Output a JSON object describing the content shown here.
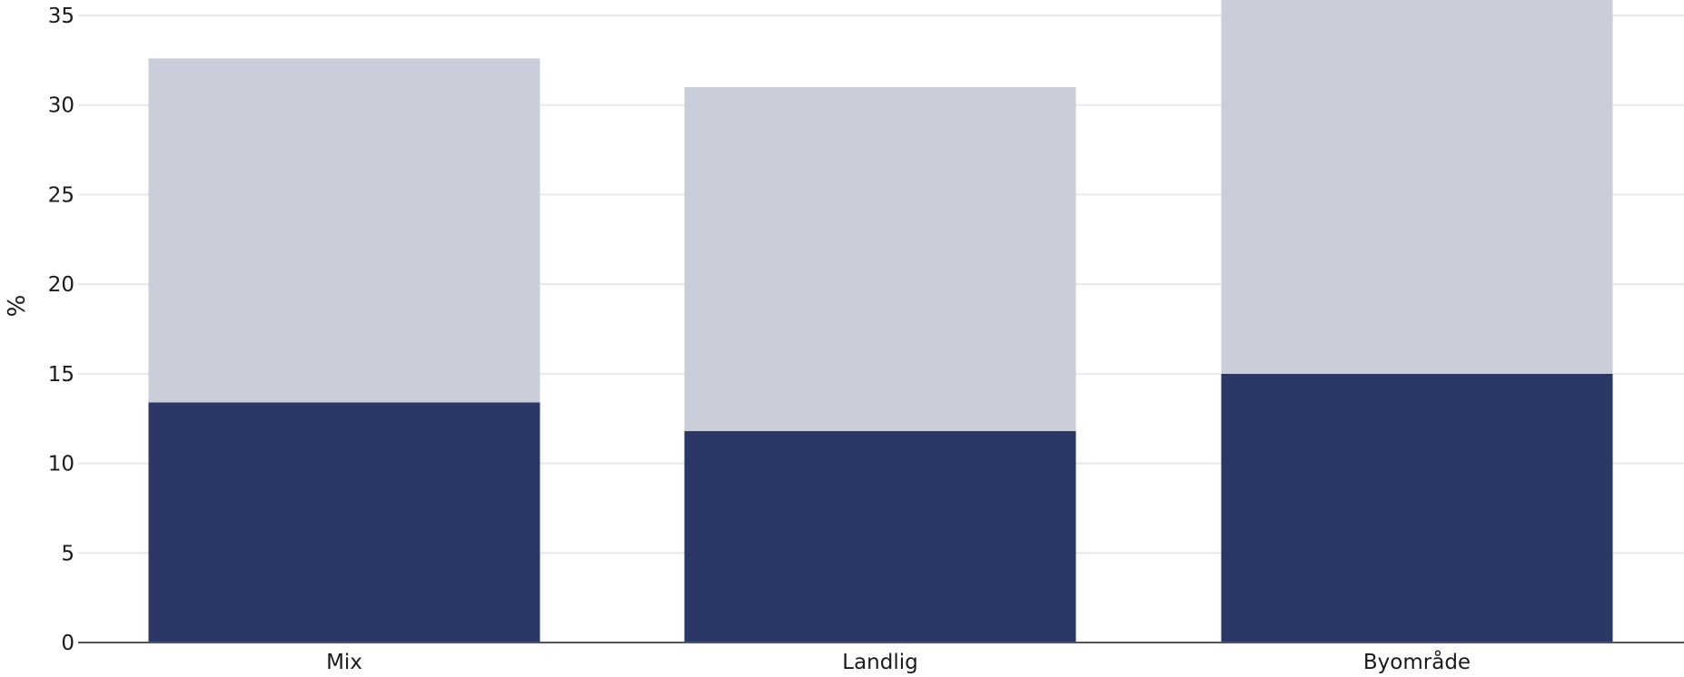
{
  "chart_data": {
    "type": "bar",
    "stacked": true,
    "categories": [
      "Mix",
      "Landlig",
      "Byområde"
    ],
    "series": [
      {
        "values": [
          13.4,
          11.8,
          15.0
        ],
        "color": "#2b3764"
      },
      {
        "values": [
          19.2,
          19.2,
          21.8
        ],
        "color": "#cacdda"
      }
    ],
    "ylabel": "%",
    "xlabel": "",
    "title": "",
    "ylim": [
      0,
      35
    ],
    "yticks": [
      0,
      5,
      10,
      15,
      20,
      25,
      30,
      35
    ],
    "grid": true,
    "legend": "none"
  }
}
